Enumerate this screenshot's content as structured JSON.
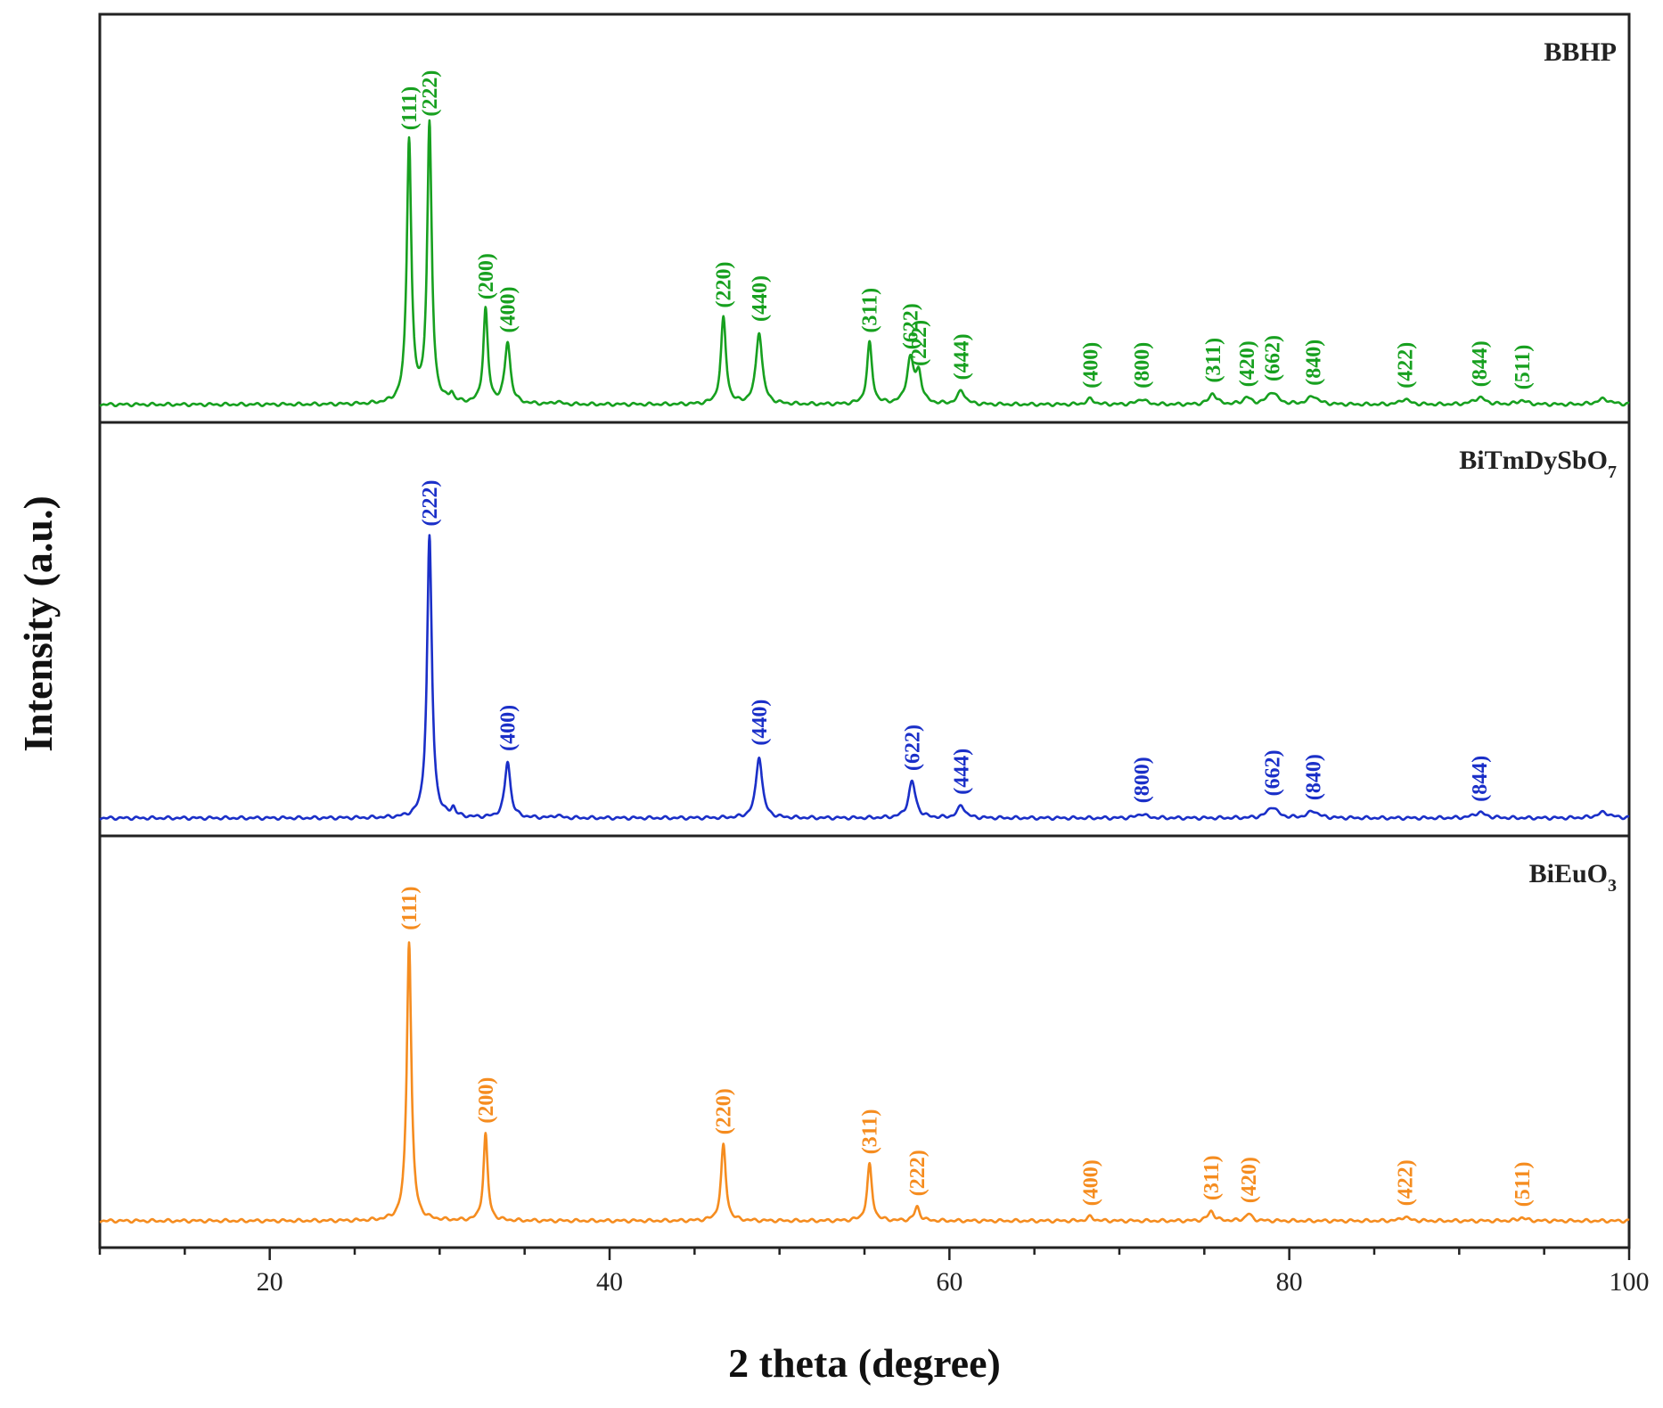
{
  "chart_data": {
    "type": "line",
    "title": "",
    "xlabel": "2 theta (degree)",
    "ylabel": "Intensity (a.u.)",
    "xlim": [
      10,
      100
    ],
    "xticks": [
      20,
      40,
      60,
      80,
      100
    ],
    "series": [
      {
        "name": "BBHP",
        "name_main": "BBHP",
        "name_sub": "",
        "color": "#17a01f",
        "peaks": [
          {
            "x": 28.2,
            "h": 0.95,
            "w": 0.16,
            "label": "(111)"
          },
          {
            "x": 29.4,
            "h": 1.0,
            "w": 0.16,
            "label": "(222)"
          },
          {
            "x": 30.7,
            "h": 0.03,
            "w": 0.15,
            "label": ""
          },
          {
            "x": 32.7,
            "h": 0.34,
            "w": 0.16,
            "label": "(200)"
          },
          {
            "x": 34.0,
            "h": 0.22,
            "w": 0.2,
            "label": "(400)"
          },
          {
            "x": 36.9,
            "h": 0.01,
            "w": 0.2,
            "label": ""
          },
          {
            "x": 46.7,
            "h": 0.31,
            "w": 0.18,
            "label": "(220)"
          },
          {
            "x": 48.8,
            "h": 0.26,
            "w": 0.22,
            "label": "(440)"
          },
          {
            "x": 55.3,
            "h": 0.22,
            "w": 0.18,
            "label": "(311)"
          },
          {
            "x": 57.7,
            "h": 0.16,
            "w": 0.25,
            "label": "(622)"
          },
          {
            "x": 58.2,
            "h": 0.1,
            "w": 0.2,
            "label": "(222)"
          },
          {
            "x": 60.7,
            "h": 0.05,
            "w": 0.25,
            "label": "(444)"
          },
          {
            "x": 68.3,
            "h": 0.02,
            "w": 0.25,
            "label": "(400)"
          },
          {
            "x": 71.3,
            "h": 0.02,
            "w": 0.3,
            "label": "(800)"
          },
          {
            "x": 75.5,
            "h": 0.04,
            "w": 0.25,
            "label": "(311)"
          },
          {
            "x": 77.5,
            "h": 0.025,
            "w": 0.25,
            "label": "(420)"
          },
          {
            "x": 79.0,
            "h": 0.045,
            "w": 0.35,
            "label": "(662)"
          },
          {
            "x": 81.4,
            "h": 0.03,
            "w": 0.35,
            "label": "(840)"
          },
          {
            "x": 86.8,
            "h": 0.02,
            "w": 0.3,
            "label": "(422)"
          },
          {
            "x": 91.2,
            "h": 0.025,
            "w": 0.4,
            "label": "(844)"
          },
          {
            "x": 93.7,
            "h": 0.015,
            "w": 0.3,
            "label": "(511)"
          },
          {
            "x": 98.5,
            "h": 0.02,
            "w": 0.45,
            "label": ""
          }
        ]
      },
      {
        "name": "BiTmDySbO7",
        "name_main": "BiTmDySbO",
        "name_sub": "7",
        "color": "#1a2fc8",
        "peaks": [
          {
            "x": 29.4,
            "h": 1.0,
            "w": 0.17,
            "label": "(222)"
          },
          {
            "x": 30.8,
            "h": 0.03,
            "w": 0.15,
            "label": ""
          },
          {
            "x": 34.0,
            "h": 0.2,
            "w": 0.2,
            "label": "(400)"
          },
          {
            "x": 36.9,
            "h": 0.01,
            "w": 0.2,
            "label": ""
          },
          {
            "x": 48.8,
            "h": 0.22,
            "w": 0.22,
            "label": "(440)"
          },
          {
            "x": 57.8,
            "h": 0.13,
            "w": 0.25,
            "label": "(622)"
          },
          {
            "x": 60.7,
            "h": 0.045,
            "w": 0.25,
            "label": "(444)"
          },
          {
            "x": 71.3,
            "h": 0.015,
            "w": 0.3,
            "label": "(800)"
          },
          {
            "x": 79.0,
            "h": 0.04,
            "w": 0.35,
            "label": "(662)"
          },
          {
            "x": 81.4,
            "h": 0.025,
            "w": 0.35,
            "label": "(840)"
          },
          {
            "x": 91.2,
            "h": 0.02,
            "w": 0.4,
            "label": "(844)"
          },
          {
            "x": 98.5,
            "h": 0.02,
            "w": 0.45,
            "label": ""
          }
        ]
      },
      {
        "name": "BiEuO3",
        "name_main": "BiEuO",
        "name_sub": "3",
        "color": "#f58c1f",
        "peaks": [
          {
            "x": 28.2,
            "h": 1.0,
            "w": 0.16,
            "label": "(111)"
          },
          {
            "x": 32.7,
            "h": 0.31,
            "w": 0.15,
            "label": "(200)"
          },
          {
            "x": 46.7,
            "h": 0.27,
            "w": 0.17,
            "label": "(220)"
          },
          {
            "x": 55.3,
            "h": 0.2,
            "w": 0.17,
            "label": "(311)"
          },
          {
            "x": 58.1,
            "h": 0.05,
            "w": 0.18,
            "label": "(222)"
          },
          {
            "x": 68.3,
            "h": 0.015,
            "w": 0.2,
            "label": "(400)"
          },
          {
            "x": 75.4,
            "h": 0.035,
            "w": 0.22,
            "label": "(311)"
          },
          {
            "x": 77.6,
            "h": 0.025,
            "w": 0.22,
            "label": "(420)"
          },
          {
            "x": 86.8,
            "h": 0.015,
            "w": 0.25,
            "label": "(422)"
          },
          {
            "x": 93.7,
            "h": 0.012,
            "w": 0.25,
            "label": "(511)"
          }
        ]
      }
    ]
  }
}
